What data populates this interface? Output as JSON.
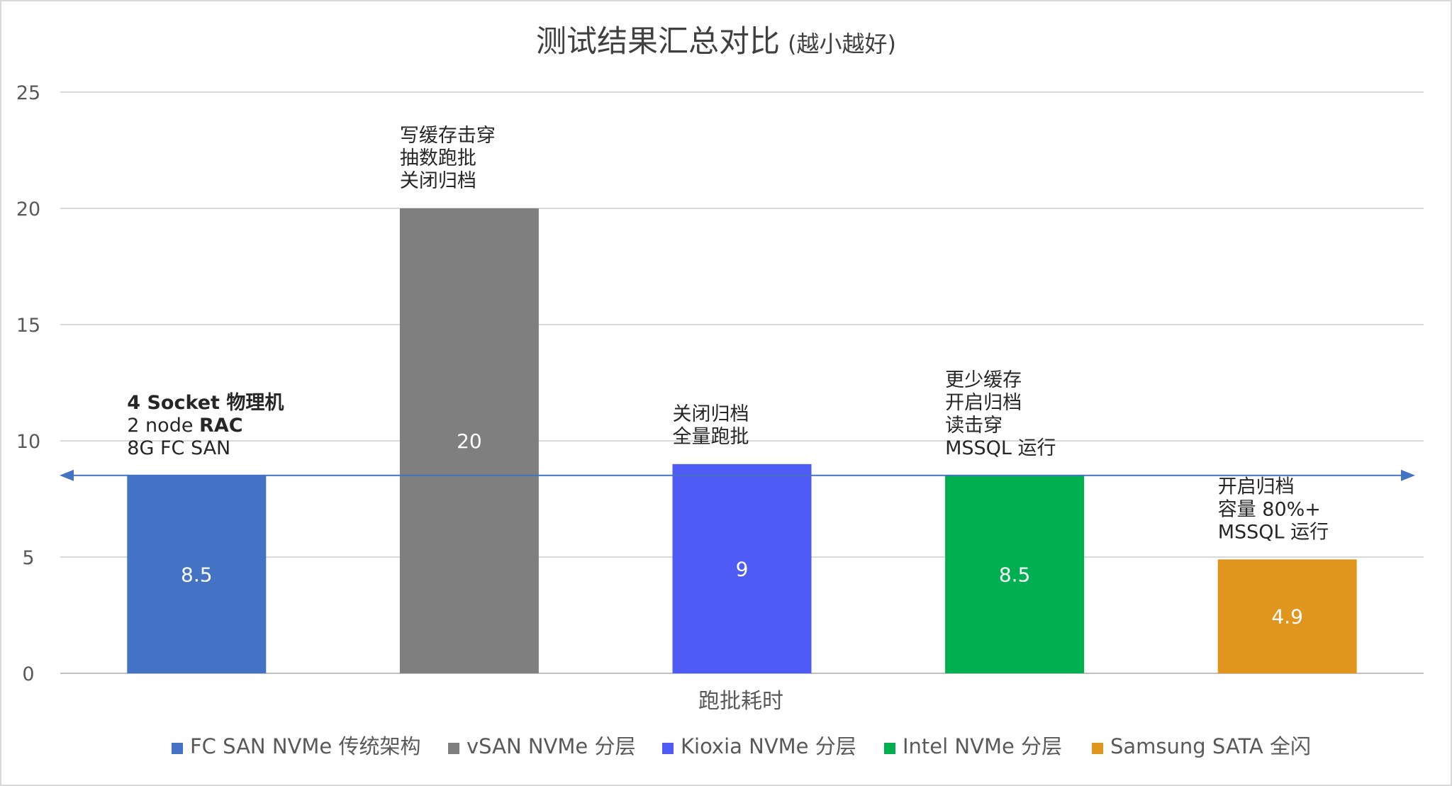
{
  "chart_data": {
    "type": "bar",
    "title": "测试结果汇总对比",
    "subtitle": "(越小越好)",
    "xlabel": "跑批耗时",
    "ylabel": "",
    "ylim": [
      0,
      25
    ],
    "yticks": [
      "0",
      "5",
      "10",
      "15",
      "20",
      "25"
    ],
    "grid": true,
    "legend_position": "bottom",
    "reference_line": {
      "value": 8.5,
      "color": "#4472C4"
    },
    "series": [
      {
        "name": "FC SAN NVMe 传统架构",
        "value": 8.5,
        "value_label": "8.5",
        "color": "#4472C4",
        "annotation": [
          {
            "text": "4 Socket 物理机",
            "parts": [
              {
                "text": "4 Socket 物理机",
                "bold": true
              }
            ]
          },
          {
            "text": "2 node RAC",
            "parts": [
              {
                "text": "2 node ",
                "bold": false
              },
              {
                "text": "RAC",
                "bold": true
              }
            ]
          },
          {
            "text": "8G FC SAN",
            "parts": [
              {
                "text": "8G FC SAN",
                "bold": false
              }
            ]
          }
        ]
      },
      {
        "name": "vSAN NVMe 分层",
        "value": 20,
        "value_label": "20",
        "color": "#7F7F7F",
        "annotation": [
          {
            "text": "写缓存击穿",
            "parts": [
              {
                "text": "写缓存击穿",
                "bold": false
              }
            ]
          },
          {
            "text": "抽数跑批",
            "parts": [
              {
                "text": "抽数跑批",
                "bold": false
              }
            ]
          },
          {
            "text": "关闭归档",
            "parts": [
              {
                "text": "关闭归档",
                "bold": false
              }
            ]
          }
        ]
      },
      {
        "name": "Kioxia NVMe 分层",
        "value": 9,
        "value_label": "9",
        "color": "#4F5BF5",
        "annotation": [
          {
            "text": "关闭归档",
            "parts": [
              {
                "text": "关闭归档",
                "bold": false
              }
            ]
          },
          {
            "text": "全量跑批",
            "parts": [
              {
                "text": "全量跑批",
                "bold": false
              }
            ]
          }
        ]
      },
      {
        "name": "Intel NVMe 分层",
        "value": 8.5,
        "value_label": "8.5",
        "color": "#00B050",
        "annotation": [
          {
            "text": "更少缓存",
            "parts": [
              {
                "text": "更少缓存",
                "bold": false
              }
            ]
          },
          {
            "text": "开启归档",
            "parts": [
              {
                "text": "开启归档",
                "bold": false
              }
            ]
          },
          {
            "text": "读击穿",
            "parts": [
              {
                "text": "读击穿",
                "bold": false
              }
            ]
          },
          {
            "text": "MSSQL 运行",
            "parts": [
              {
                "text": "MSSQL 运行",
                "bold": false
              }
            ]
          }
        ]
      },
      {
        "name": "Samsung SATA 全闪",
        "value": 4.9,
        "value_label": "4.9",
        "color": "#E0961C",
        "annotation": [
          {
            "text": "开启归档",
            "parts": [
              {
                "text": "开启归档",
                "bold": false
              }
            ]
          },
          {
            "text": "容量 80%+",
            "parts": [
              {
                "text": "容量 80%+",
                "bold": false
              }
            ]
          },
          {
            "text": "MSSQL 运行",
            "parts": [
              {
                "text": "MSSQL 运行",
                "bold": false
              }
            ]
          }
        ]
      }
    ]
  }
}
